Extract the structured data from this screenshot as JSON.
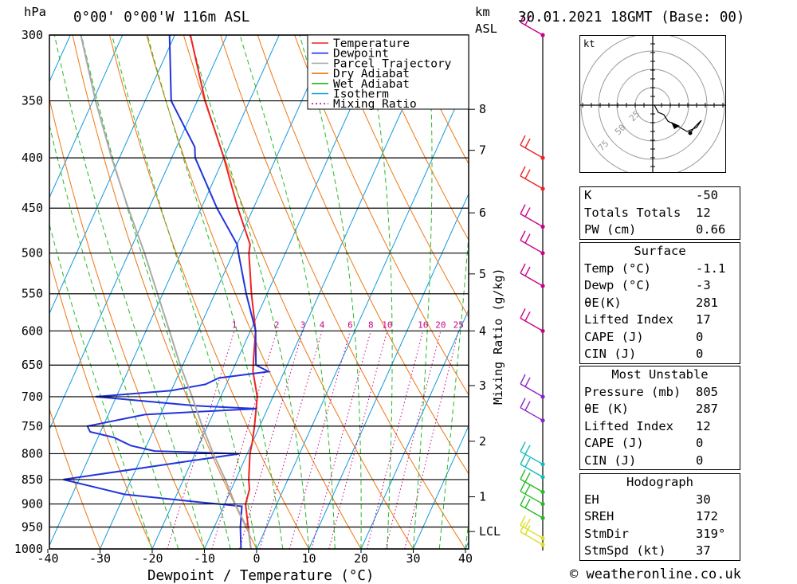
{
  "header": {
    "pressure_unit": "hPa",
    "location": "0°00' 0°00'W 116m ASL",
    "height_unit": "km",
    "height_unit2": "ASL",
    "datetime": "30.01.2021 18GMT (Base: 00)"
  },
  "chart_data": {
    "type": "skew-t",
    "xlabel": "Dewpoint / Temperature (°C)",
    "ylabel_right": "Mixing Ratio (g/kg)",
    "pressure_ticks": [
      300,
      350,
      400,
      450,
      500,
      550,
      600,
      650,
      700,
      750,
      800,
      850,
      900,
      950,
      1000
    ],
    "temperature_ticks": [
      -40,
      -30,
      -20,
      -10,
      0,
      10,
      20,
      30,
      40
    ],
    "xlim": [
      -40,
      40
    ],
    "ylim_hpa": [
      1000,
      300
    ],
    "height_ticks_km": [
      {
        "label": "8",
        "p": 357
      },
      {
        "label": "7",
        "p": 393
      },
      {
        "label": "6",
        "p": 455
      },
      {
        "label": "5",
        "p": 525
      },
      {
        "label": "4",
        "p": 600
      },
      {
        "label": "3",
        "p": 682
      },
      {
        "label": "2",
        "p": 777
      },
      {
        "label": "1",
        "p": 885
      },
      {
        "label": "LCL",
        "p": 960
      }
    ],
    "mixing_ratio_labels": [
      "1",
      "2",
      "3",
      "4",
      "6",
      "8",
      "10",
      "16",
      "20",
      "25"
    ],
    "mixing_ratio_values": [
      1,
      2,
      3,
      4,
      6,
      8,
      10,
      16,
      20,
      25
    ],
    "legend": [
      {
        "name": "Temperature",
        "color": "#ee2222",
        "dash": ""
      },
      {
        "name": "Dewpoint",
        "color": "#2233dd",
        "dash": ""
      },
      {
        "name": "Parcel Trajectory",
        "color": "#aaaaaa",
        "dash": ""
      },
      {
        "name": "Dry Adiabat",
        "color": "#ee7711",
        "dash": ""
      },
      {
        "name": "Wet Adiabat",
        "color": "#22bb22",
        "dash": ""
      },
      {
        "name": "Isotherm",
        "color": "#1199dd",
        "dash": ""
      },
      {
        "name": "Mixing Ratio",
        "color": "#cc0088",
        "dash": "2,3"
      }
    ],
    "series": [
      {
        "name": "Temperature",
        "color": "#ee2222",
        "points": [
          [
            1000,
            -1.1
          ],
          [
            950,
            -3.5
          ],
          [
            920,
            -5
          ],
          [
            900,
            -6
          ],
          [
            870,
            -6.5
          ],
          [
            850,
            -7.5
          ],
          [
            800,
            -9.5
          ],
          [
            780,
            -10
          ],
          [
            750,
            -11
          ],
          [
            700,
            -13
          ],
          [
            660,
            -16
          ],
          [
            640,
            -17
          ],
          [
            600,
            -19
          ],
          [
            550,
            -23
          ],
          [
            500,
            -27
          ],
          [
            490,
            -27.5
          ],
          [
            450,
            -33
          ],
          [
            400,
            -40
          ],
          [
            350,
            -48.5
          ],
          [
            300,
            -57
          ]
        ]
      },
      {
        "name": "Dewpoint",
        "color": "#2233dd",
        "points": [
          [
            1000,
            -3
          ],
          [
            950,
            -5
          ],
          [
            905,
            -6.5
          ],
          [
            895,
            -16
          ],
          [
            880,
            -30
          ],
          [
            850,
            -43
          ],
          [
            800,
            -11.5
          ],
          [
            795,
            -28
          ],
          [
            785,
            -33
          ],
          [
            770,
            -37
          ],
          [
            760,
            -42
          ],
          [
            750,
            -43
          ],
          [
            730,
            -33
          ],
          [
            725,
            -23
          ],
          [
            720,
            -12
          ],
          [
            715,
            -24
          ],
          [
            700,
            -44
          ],
          [
            690,
            -30
          ],
          [
            680,
            -24
          ],
          [
            670,
            -22
          ],
          [
            660,
            -13
          ],
          [
            650,
            -16
          ],
          [
            600,
            -19
          ],
          [
            550,
            -24
          ],
          [
            500,
            -29
          ],
          [
            490,
            -30
          ],
          [
            450,
            -37
          ],
          [
            400,
            -45.5
          ],
          [
            390,
            -46.5
          ],
          [
            350,
            -55
          ],
          [
            300,
            -61
          ]
        ]
      },
      {
        "name": "Parcel Trajectory",
        "color": "#aaaaaa",
        "points": [
          [
            1000,
            -1.1
          ],
          [
            960,
            -3
          ],
          [
            900,
            -8
          ],
          [
            850,
            -12
          ],
          [
            800,
            -16.5
          ],
          [
            750,
            -21
          ],
          [
            700,
            -25.5
          ],
          [
            650,
            -30.5
          ],
          [
            600,
            -35.5
          ],
          [
            550,
            -41
          ],
          [
            500,
            -47
          ],
          [
            450,
            -54
          ],
          [
            400,
            -61.5
          ],
          [
            350,
            -69.5
          ],
          [
            300,
            -78
          ]
        ]
      }
    ],
    "wind_barbs": [
      {
        "p": 300,
        "color": "#cc0088",
        "label": "pennant-300"
      },
      {
        "p": 400,
        "color": "#ee2222",
        "label": "barb-400"
      },
      {
        "p": 430,
        "color": "#ee2222",
        "label": "barb-430"
      },
      {
        "p": 470,
        "color": "#cc0088",
        "label": "barb-470"
      },
      {
        "p": 500,
        "color": "#cc0088",
        "label": "barb-500"
      },
      {
        "p": 540,
        "color": "#cc0088",
        "label": "barb-540"
      },
      {
        "p": 600,
        "color": "#cc0088",
        "label": "barb-600"
      },
      {
        "p": 700,
        "color": "#8822cc",
        "label": "barb-700"
      },
      {
        "p": 740,
        "color": "#8822cc",
        "label": "barb-740"
      },
      {
        "p": 820,
        "color": "#11bbbb",
        "label": "barb-820"
      },
      {
        "p": 845,
        "color": "#11bbbb",
        "label": "barb-845"
      },
      {
        "p": 875,
        "color": "#22bb22",
        "label": "barb-875"
      },
      {
        "p": 900,
        "color": "#22bb22",
        "label": "barb-900"
      },
      {
        "p": 930,
        "color": "#22bb22",
        "label": "barb-930"
      },
      {
        "p": 975,
        "color": "#dddd22",
        "label": "barb-975"
      },
      {
        "p": 990,
        "color": "#dddd22",
        "label": "barb-990"
      }
    ],
    "grid": true
  },
  "hodograph": {
    "unit": "kt",
    "rings": [
      "25",
      "50",
      "75"
    ]
  },
  "stats": {
    "indices": [
      {
        "label": "K",
        "value": "-50"
      },
      {
        "label": "Totals Totals",
        "value": "12"
      },
      {
        "label": "PW (cm)",
        "value": "0.66"
      }
    ],
    "surface_title": "Surface",
    "surface": [
      {
        "label": "Temp (°C)",
        "value": "-1.1"
      },
      {
        "label": "Dewp (°C)",
        "value": "-3"
      },
      {
        "label": "θE(K)",
        "value": "281"
      },
      {
        "label": "Lifted Index",
        "value": "17"
      },
      {
        "label": "CAPE (J)",
        "value": "0"
      },
      {
        "label": "CIN (J)",
        "value": "0"
      }
    ],
    "mu_title": "Most Unstable",
    "mu": [
      {
        "label": "Pressure (mb)",
        "value": "805"
      },
      {
        "label": "θE (K)",
        "value": "287"
      },
      {
        "label": "Lifted Index",
        "value": "12"
      },
      {
        "label": "CAPE (J)",
        "value": "0"
      },
      {
        "label": "CIN (J)",
        "value": "0"
      }
    ],
    "hodo_title": "Hodograph",
    "hodo": [
      {
        "label": "EH",
        "value": "30"
      },
      {
        "label": "SREH",
        "value": "172"
      },
      {
        "label": "StmDir",
        "value": "319°"
      },
      {
        "label": "StmSpd (kt)",
        "value": "37"
      }
    ]
  },
  "footer": {
    "copyright": "© weatheronline.co.uk"
  }
}
